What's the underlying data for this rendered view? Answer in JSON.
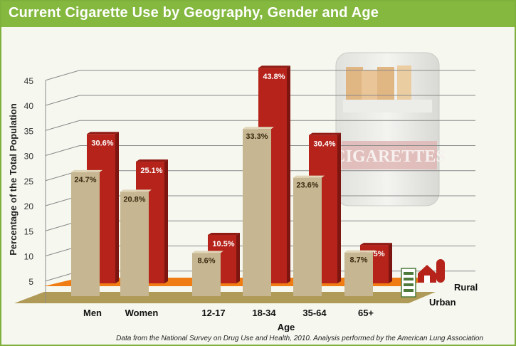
{
  "title": "Current Cigarette Use by Geography, Gender and Age",
  "source_note": "Data from the National Survey on Drug Use and Health, 2010. Analysis performed by the American Lung Association",
  "pack_label": "CIGARETTES",
  "colors": {
    "urban": "#c6b691",
    "rural": "#b5231a",
    "title_bar": "#84b83f",
    "rural_floor": "#f07c14",
    "urban_floor": "#b09a57"
  },
  "chart_data": {
    "type": "bar",
    "title": "Current Cigarette Use by Geography, Gender and Age",
    "xlabel": "Age",
    "ylabel": "Percentage of the Total Population",
    "yticks": [
      5,
      10,
      15,
      20,
      25,
      30,
      35,
      40,
      45
    ],
    "ylim": [
      0,
      45
    ],
    "grid": true,
    "categories": [
      "Men",
      "Women",
      "12-17",
      "18-34",
      "35-64",
      "65+"
    ],
    "series": [
      {
        "name": "Urban",
        "values": [
          24.7,
          20.8,
          8.6,
          33.3,
          23.6,
          8.7
        ],
        "labels": [
          "24.7%",
          "20.8%",
          "8.6%",
          "33.3%",
          "23.6%",
          "8.7%"
        ]
      },
      {
        "name": "Rural",
        "values": [
          30.6,
          25.1,
          10.5,
          43.8,
          30.4,
          8.5
        ],
        "labels": [
          "30.6%",
          "25.1%",
          "10.5%",
          "43.8%",
          "30.4%",
          "8.5%"
        ]
      }
    ],
    "legend_position": "bottom-right"
  }
}
